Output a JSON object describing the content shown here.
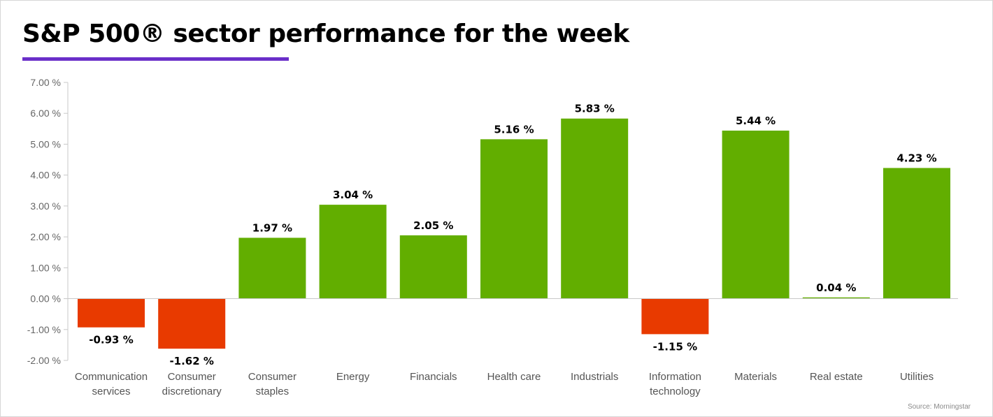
{
  "title": "S&P 500® sector performance for the week",
  "source": "Source: Morningstar",
  "colors": {
    "positive": "#62ae00",
    "negative": "#e83a00",
    "title_rule": "#6a2fc9",
    "axis": "#c8c8c8"
  },
  "chart_data": {
    "type": "bar",
    "title": "S&P 500® sector performance for the week",
    "xlabel": "",
    "ylabel": "",
    "ylim": [
      -2,
      7
    ],
    "yticks": [
      7,
      6,
      5,
      4,
      3,
      2,
      1,
      0,
      -1,
      -2
    ],
    "ytick_labels": [
      "7.00 %",
      "6.00 %",
      "5.00 %",
      "4.00 %",
      "3.00 %",
      "2.00 %",
      "1.00 %",
      "0.00 %",
      "-1.00 %",
      "-2.00 %"
    ],
    "grid": false,
    "legend": "none",
    "categories": [
      [
        "Communication",
        "services"
      ],
      [
        "Consumer",
        "discretionary"
      ],
      [
        "Consumer",
        "staples"
      ],
      [
        "Energy"
      ],
      [
        "Financials"
      ],
      [
        "Health care"
      ],
      [
        "Industrials"
      ],
      [
        "Information",
        "technology"
      ],
      [
        "Materials"
      ],
      [
        "Real estate"
      ],
      [
        "Utilities"
      ]
    ],
    "values": [
      -0.93,
      -1.62,
      1.97,
      3.04,
      2.05,
      5.16,
      5.83,
      -1.15,
      5.44,
      0.04,
      4.23
    ],
    "value_labels": [
      "-0.93 %",
      "-1.62 %",
      "1.97 %",
      "3.04 %",
      "2.05 %",
      "5.16 %",
      "5.83 %",
      "-1.15 %",
      "5.44 %",
      "0.04 %",
      "4.23 %"
    ]
  }
}
